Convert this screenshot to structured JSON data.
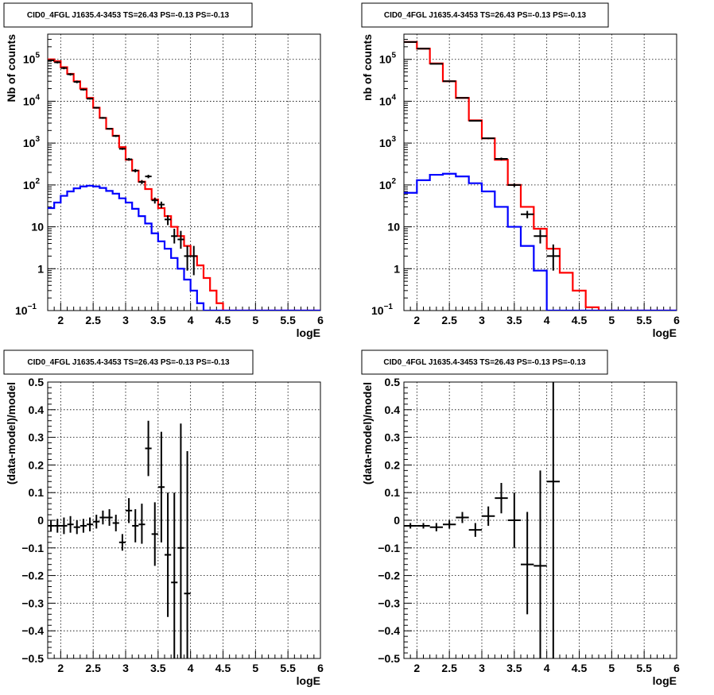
{
  "chart_data": [
    {
      "type": "line",
      "title": "CID0_4FGL J1635.4-3453 TS=26.43 PS=-0.13 PS=-0.13",
      "xlabel": "logE",
      "ylabel": "Nb of counts",
      "xlim": [
        1.8,
        6.0
      ],
      "ylim": [
        0.1,
        400000
      ],
      "yscale": "log",
      "grid": true,
      "x_ticks": [
        "2",
        "2.5",
        "3",
        "3.5",
        "4",
        "4.5",
        "5",
        "5.5",
        "6"
      ],
      "y_ticks": [
        {
          "value": 0.1,
          "base": "10",
          "exp": "−1"
        },
        {
          "value": 1,
          "text": "1"
        },
        {
          "value": 10,
          "text": "10"
        },
        {
          "value": 100,
          "base": "10",
          "exp": "2"
        },
        {
          "value": 1000,
          "base": "10",
          "exp": "3"
        },
        {
          "value": 10000,
          "base": "10",
          "exp": "4"
        },
        {
          "value": 100000,
          "base": "10",
          "exp": "5"
        }
      ],
      "bin_edges": [
        1.8,
        1.9,
        2.0,
        2.1,
        2.2,
        2.3,
        2.4,
        2.5,
        2.6,
        2.7,
        2.8,
        2.9,
        3.0,
        3.1,
        3.2,
        3.3,
        3.4,
        3.5,
        3.6,
        3.7,
        3.8,
        3.9,
        4.0,
        4.1,
        4.2,
        4.3,
        4.4,
        4.5,
        4.6,
        4.7,
        4.8,
        4.9,
        5.0,
        5.1,
        5.2,
        5.3,
        5.4,
        5.5,
        5.6,
        5.7,
        5.8,
        5.9,
        6.0
      ],
      "series": [
        {
          "color": "#ff0000",
          "values": [
            100000,
            90000,
            65000,
            45000,
            30000,
            20000,
            12000,
            7000,
            4000,
            2200,
            1500,
            800,
            400,
            220,
            120,
            80,
            45,
            28,
            18,
            10,
            6,
            3.5,
            2,
            1.2,
            0.6,
            0.3,
            0.15,
            0.1,
            0.1,
            0.1,
            0.1,
            0.1,
            0.1,
            0.1,
            0.1,
            0.1,
            0.1,
            0.1,
            0.1,
            0.1,
            0.1,
            0.1
          ]
        },
        {
          "color": "#0000ff",
          "values": [
            28,
            38,
            55,
            70,
            83,
            92,
            96,
            92,
            85,
            72,
            62,
            48,
            38,
            27,
            18,
            12,
            7,
            4.5,
            3,
            1.8,
            1,
            0.55,
            0.3,
            0.15,
            0.1,
            0.1,
            0.1,
            0.1,
            0.1,
            0.1,
            0.1,
            0.1,
            0.1,
            0.1,
            0.1,
            0.1,
            0.1,
            0.1,
            0.1,
            0.1,
            0.1,
            0.1
          ]
        }
      ],
      "data_points": [
        {
          "x": 1.85,
          "xerr": 0.05,
          "y": 95000,
          "ylo": 90000,
          "yhi": 100000
        },
        {
          "x": 1.95,
          "xerr": 0.05,
          "y": 85000,
          "ylo": 80000,
          "yhi": 90000
        },
        {
          "x": 2.05,
          "xerr": 0.05,
          "y": 62000,
          "ylo": 58000,
          "yhi": 66000
        },
        {
          "x": 2.15,
          "xerr": 0.05,
          "y": 44000,
          "ylo": 41000,
          "yhi": 47000
        },
        {
          "x": 2.25,
          "xerr": 0.05,
          "y": 29000,
          "ylo": 27000,
          "yhi": 31000
        },
        {
          "x": 2.35,
          "xerr": 0.05,
          "y": 19000,
          "ylo": 18000,
          "yhi": 20000
        },
        {
          "x": 2.45,
          "xerr": 0.05,
          "y": 11500,
          "ylo": 11000,
          "yhi": 12000
        },
        {
          "x": 2.55,
          "xerr": 0.05,
          "y": 7000,
          "ylo": 6700,
          "yhi": 7300
        },
        {
          "x": 2.65,
          "xerr": 0.05,
          "y": 4000,
          "ylo": 3800,
          "yhi": 4200
        },
        {
          "x": 2.75,
          "xerr": 0.05,
          "y": 2200,
          "ylo": 2100,
          "yhi": 2300
        },
        {
          "x": 2.85,
          "xerr": 0.05,
          "y": 1480,
          "ylo": 1400,
          "yhi": 1560
        },
        {
          "x": 2.95,
          "xerr": 0.05,
          "y": 730,
          "ylo": 690,
          "yhi": 770
        },
        {
          "x": 3.05,
          "xerr": 0.05,
          "y": 410,
          "ylo": 380,
          "yhi": 440
        },
        {
          "x": 3.15,
          "xerr": 0.05,
          "y": 220,
          "ylo": 200,
          "yhi": 240
        },
        {
          "x": 3.25,
          "xerr": 0.05,
          "y": 118,
          "ylo": 105,
          "yhi": 131
        },
        {
          "x": 3.35,
          "xerr": 0.05,
          "y": 160,
          "ylo": 145,
          "yhi": 175
        },
        {
          "x": 3.45,
          "xerr": 0.05,
          "y": 43,
          "ylo": 36,
          "yhi": 50
        },
        {
          "x": 3.55,
          "xerr": 0.05,
          "y": 34,
          "ylo": 28,
          "yhi": 40
        },
        {
          "x": 3.65,
          "xerr": 0.05,
          "y": 15,
          "ylo": 11,
          "yhi": 19
        },
        {
          "x": 3.75,
          "xerr": 0.05,
          "y": 6,
          "ylo": 4,
          "yhi": 9
        },
        {
          "x": 3.85,
          "xerr": 0.05,
          "y": 5,
          "ylo": 3,
          "yhi": 8
        },
        {
          "x": 3.95,
          "xerr": 0.05,
          "y": 2,
          "ylo": 0.9,
          "yhi": 3.5
        },
        {
          "x": 4.05,
          "xerr": 0.05,
          "y": 2,
          "ylo": 0.7,
          "yhi": 3.5
        }
      ]
    },
    {
      "type": "line",
      "title": "CID0_4FGL J1635.4-3453 TS=26.43 PS=-0.13 PS=-0.13",
      "xlabel": "logE",
      "ylabel": "nb of counts",
      "xlim": [
        1.8,
        6.0
      ],
      "ylim": [
        0.1,
        400000
      ],
      "yscale": "log",
      "grid": true,
      "x_ticks": [
        "2",
        "2.5",
        "3",
        "3.5",
        "4",
        "4.5",
        "5",
        "5.5",
        "6"
      ],
      "y_ticks": [
        {
          "value": 0.1,
          "base": "10",
          "exp": "−1"
        },
        {
          "value": 1,
          "text": "1"
        },
        {
          "value": 10,
          "text": "10"
        },
        {
          "value": 100,
          "base": "10",
          "exp": "2"
        },
        {
          "value": 1000,
          "base": "10",
          "exp": "3"
        },
        {
          "value": 10000,
          "base": "10",
          "exp": "4"
        },
        {
          "value": 100000,
          "base": "10",
          "exp": "5"
        }
      ],
      "bin_edges": [
        1.8,
        2.0,
        2.2,
        2.4,
        2.6,
        2.8,
        3.0,
        3.2,
        3.4,
        3.6,
        3.8,
        4.0,
        4.2,
        4.4,
        4.6,
        4.8,
        5.0,
        5.2,
        5.4,
        5.6,
        5.8,
        6.0
      ],
      "series": [
        {
          "color": "#ff0000",
          "values": [
            260000,
            180000,
            80000,
            30000,
            12000,
            3500,
            1300,
            400,
            100,
            30,
            9,
            3,
            0.8,
            0.3,
            0.12,
            0.1,
            0.1,
            0.1,
            0.1,
            0.1,
            0.1
          ]
        },
        {
          "color": "#0000ff",
          "values": [
            65,
            130,
            175,
            185,
            160,
            110,
            70,
            30,
            10,
            3.5,
            0.9,
            0.1,
            0.1,
            0.1,
            0.1,
            0.1,
            0.1,
            0.1,
            0.1,
            0.1,
            0.1
          ]
        }
      ],
      "data_points": [
        {
          "x": 1.9,
          "xerr": 0.1,
          "y": 260000,
          "ylo": 255000,
          "yhi": 265000
        },
        {
          "x": 2.1,
          "xerr": 0.1,
          "y": 180000,
          "ylo": 176000,
          "yhi": 184000
        },
        {
          "x": 2.3,
          "xerr": 0.1,
          "y": 78000,
          "ylo": 76000,
          "yhi": 80000
        },
        {
          "x": 2.5,
          "xerr": 0.1,
          "y": 30000,
          "ylo": 29000,
          "yhi": 31000
        },
        {
          "x": 2.7,
          "xerr": 0.1,
          "y": 12000,
          "ylo": 11600,
          "yhi": 12400
        },
        {
          "x": 2.9,
          "xerr": 0.1,
          "y": 3400,
          "ylo": 3300,
          "yhi": 3500
        },
        {
          "x": 3.1,
          "xerr": 0.1,
          "y": 1300,
          "ylo": 1240,
          "yhi": 1360
        },
        {
          "x": 3.3,
          "xerr": 0.1,
          "y": 420,
          "ylo": 390,
          "yhi": 450
        },
        {
          "x": 3.5,
          "xerr": 0.1,
          "y": 100,
          "ylo": 90,
          "yhi": 110
        },
        {
          "x": 3.7,
          "xerr": 0.1,
          "y": 20,
          "ylo": 16,
          "yhi": 24
        },
        {
          "x": 3.9,
          "xerr": 0.1,
          "y": 6,
          "ylo": 4,
          "yhi": 8.5
        },
        {
          "x": 4.1,
          "xerr": 0.1,
          "y": 2,
          "ylo": 0.9,
          "yhi": 3.8
        }
      ]
    },
    {
      "type": "scatter",
      "title": "CID0_4FGL J1635.4-3453 TS=26.43 PS=-0.13 PS=-0.13",
      "xlabel": "logE",
      "ylabel": "(data-model)/model",
      "xlim": [
        1.8,
        6.0
      ],
      "ylim": [
        -0.5,
        0.5
      ],
      "grid": true,
      "x_ticks": [
        "2",
        "2.5",
        "3",
        "3.5",
        "4",
        "4.5",
        "5",
        "5.5",
        "6"
      ],
      "y_ticks": [
        "−0.5",
        "−0.4",
        "−0.3",
        "−0.2",
        "−0.1",
        "0",
        "0.1",
        "0.2",
        "0.3",
        "0.4",
        "0.5"
      ],
      "data_points": [
        {
          "x": 1.85,
          "xerr": 0.05,
          "y": -0.02,
          "ylo": -0.04,
          "yhi": 0.0
        },
        {
          "x": 1.95,
          "xerr": 0.05,
          "y": -0.02,
          "ylo": -0.045,
          "yhi": 0.005
        },
        {
          "x": 2.05,
          "xerr": 0.05,
          "y": -0.02,
          "ylo": -0.05,
          "yhi": 0.01
        },
        {
          "x": 2.15,
          "xerr": 0.05,
          "y": -0.015,
          "ylo": -0.045,
          "yhi": 0.015
        },
        {
          "x": 2.25,
          "xerr": 0.05,
          "y": -0.025,
          "ylo": -0.05,
          "yhi": 0.0
        },
        {
          "x": 2.35,
          "xerr": 0.05,
          "y": -0.02,
          "ylo": -0.045,
          "yhi": 0.005
        },
        {
          "x": 2.45,
          "xerr": 0.05,
          "y": -0.015,
          "ylo": -0.04,
          "yhi": 0.01
        },
        {
          "x": 2.55,
          "xerr": 0.05,
          "y": -0.005,
          "ylo": -0.03,
          "yhi": 0.02
        },
        {
          "x": 2.65,
          "xerr": 0.05,
          "y": 0.01,
          "ylo": -0.015,
          "yhi": 0.035
        },
        {
          "x": 2.75,
          "xerr": 0.05,
          "y": 0.01,
          "ylo": -0.02,
          "yhi": 0.04
        },
        {
          "x": 2.85,
          "xerr": 0.05,
          "y": -0.01,
          "ylo": -0.04,
          "yhi": 0.02
        },
        {
          "x": 2.95,
          "xerr": 0.05,
          "y": -0.08,
          "ylo": -0.11,
          "yhi": -0.05
        },
        {
          "x": 3.05,
          "xerr": 0.05,
          "y": 0.035,
          "ylo": -0.01,
          "yhi": 0.08
        },
        {
          "x": 3.15,
          "xerr": 0.05,
          "y": -0.02,
          "ylo": -0.08,
          "yhi": 0.04
        },
        {
          "x": 3.25,
          "xerr": 0.05,
          "y": -0.015,
          "ylo": -0.085,
          "yhi": 0.06
        },
        {
          "x": 3.35,
          "xerr": 0.05,
          "y": 0.26,
          "ylo": 0.16,
          "yhi": 0.36
        },
        {
          "x": 3.45,
          "xerr": 0.05,
          "y": -0.05,
          "ylo": -0.165,
          "yhi": 0.065
        },
        {
          "x": 3.55,
          "xerr": 0.05,
          "y": 0.12,
          "ylo": -0.08,
          "yhi": 0.32
        },
        {
          "x": 3.65,
          "xerr": 0.05,
          "y": -0.125,
          "ylo": -0.35,
          "yhi": 0.1
        },
        {
          "x": 3.75,
          "xerr": 0.05,
          "y": -0.225,
          "ylo": -0.5,
          "yhi": 0.1
        },
        {
          "x": 3.85,
          "xerr": 0.05,
          "y": -0.1,
          "ylo": -0.5,
          "yhi": 0.35
        },
        {
          "x": 3.95,
          "xerr": 0.05,
          "y": -0.265,
          "ylo": -0.5,
          "yhi": 0.25
        }
      ]
    },
    {
      "type": "scatter",
      "title": "CID0_4FGL J1635.4-3453 TS=26.43 PS=-0.13 PS=-0.13",
      "xlabel": "logE",
      "ylabel": "(data-model)/model",
      "xlim": [
        1.8,
        6.0
      ],
      "ylim": [
        -0.5,
        0.5
      ],
      "grid": true,
      "x_ticks": [
        "2",
        "2.5",
        "3",
        "3.5",
        "4",
        "4.5",
        "5",
        "5.5",
        "6"
      ],
      "y_ticks": [
        "−0.5",
        "−0.4",
        "−0.3",
        "−0.2",
        "−0.1",
        "0",
        "0.1",
        "0.2",
        "0.3",
        "0.4",
        "0.5"
      ],
      "data_points": [
        {
          "x": 1.9,
          "xerr": 0.1,
          "y": -0.02,
          "ylo": -0.03,
          "yhi": -0.01
        },
        {
          "x": 2.1,
          "xerr": 0.1,
          "y": -0.02,
          "ylo": -0.03,
          "yhi": -0.01
        },
        {
          "x": 2.3,
          "xerr": 0.1,
          "y": -0.025,
          "ylo": -0.04,
          "yhi": -0.01
        },
        {
          "x": 2.5,
          "xerr": 0.1,
          "y": -0.015,
          "ylo": -0.03,
          "yhi": 0.0
        },
        {
          "x": 2.7,
          "xerr": 0.1,
          "y": 0.01,
          "ylo": -0.01,
          "yhi": 0.03
        },
        {
          "x": 2.9,
          "xerr": 0.1,
          "y": -0.035,
          "ylo": -0.06,
          "yhi": -0.01
        },
        {
          "x": 3.1,
          "xerr": 0.1,
          "y": 0.015,
          "ylo": -0.02,
          "yhi": 0.05
        },
        {
          "x": 3.3,
          "xerr": 0.1,
          "y": 0.08,
          "ylo": 0.025,
          "yhi": 0.135
        },
        {
          "x": 3.5,
          "xerr": 0.1,
          "y": 0.0,
          "ylo": -0.1,
          "yhi": 0.1
        },
        {
          "x": 3.7,
          "xerr": 0.1,
          "y": -0.16,
          "ylo": -0.34,
          "yhi": 0.03
        },
        {
          "x": 3.9,
          "xerr": 0.1,
          "y": -0.165,
          "ylo": -0.5,
          "yhi": 0.18
        },
        {
          "x": 4.1,
          "xerr": 0.1,
          "y": 0.14,
          "ylo": -0.5,
          "yhi": 0.5
        }
      ]
    }
  ]
}
